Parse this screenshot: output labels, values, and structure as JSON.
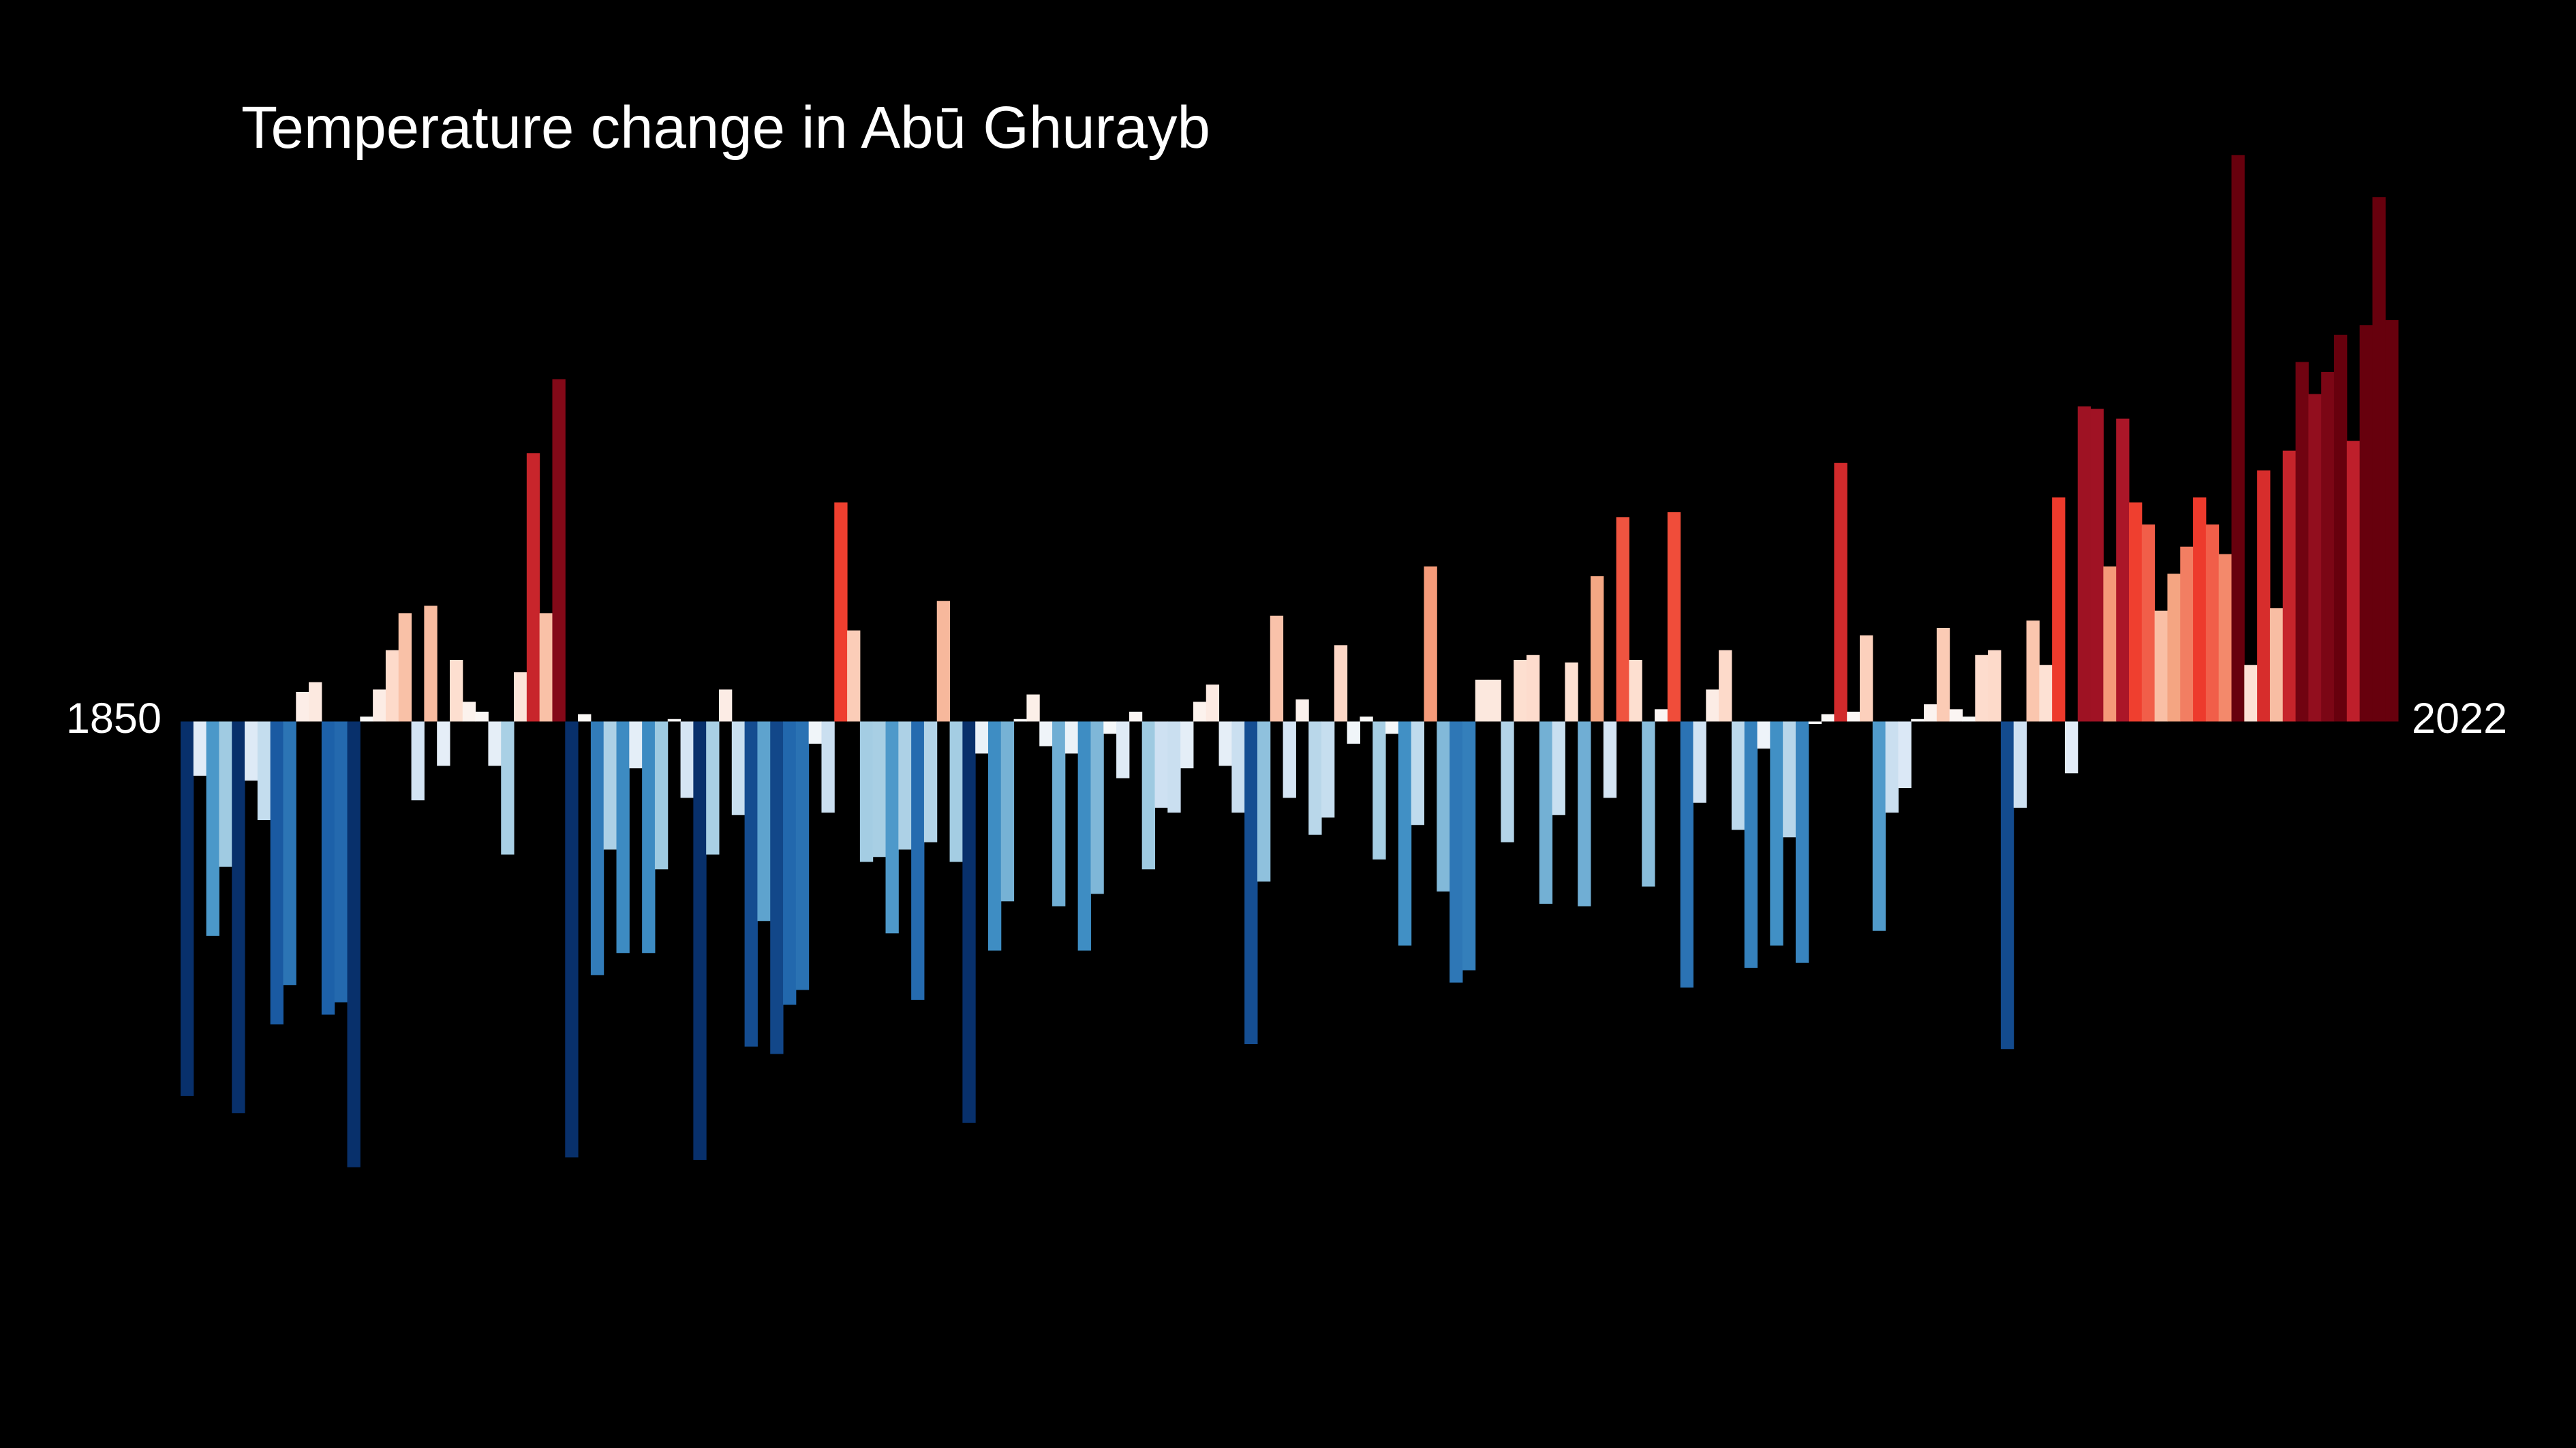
{
  "chart_data": {
    "type": "bar",
    "title": "Temperature change in Abū Ghurayb",
    "categories": [
      "1850",
      null,
      null,
      null,
      null,
      null,
      null,
      null,
      null,
      null,
      null,
      null,
      null,
      null,
      null,
      null,
      null,
      null,
      null,
      null,
      null,
      null,
      null,
      null,
      null,
      null,
      null,
      null,
      null,
      null,
      null,
      null,
      null,
      null,
      null,
      null,
      null,
      null,
      null,
      null,
      null,
      null,
      null,
      null,
      null,
      null,
      null,
      null,
      null,
      null,
      null,
      null,
      null,
      null,
      null,
      null,
      null,
      null,
      null,
      null,
      null,
      null,
      null,
      null,
      null,
      null,
      null,
      null,
      null,
      null,
      null,
      null,
      null,
      null,
      null,
      null,
      null,
      null,
      null,
      null,
      null,
      null,
      null,
      null,
      null,
      null,
      null,
      null,
      null,
      null,
      null,
      null,
      null,
      null,
      null,
      null,
      null,
      null,
      null,
      null,
      null,
      null,
      null,
      null,
      null,
      null,
      null,
      null,
      null,
      null,
      null,
      null,
      null,
      null,
      null,
      null,
      null,
      null,
      null,
      null,
      null,
      null,
      null,
      null,
      null,
      null,
      null,
      null,
      null,
      null,
      null,
      null,
      null,
      null,
      null,
      null,
      null,
      null,
      null,
      null,
      null,
      null,
      null,
      null,
      null,
      null,
      null,
      null,
      null,
      null,
      null,
      null,
      null,
      null,
      null,
      null,
      null,
      null,
      null,
      null,
      null,
      null,
      null,
      null,
      null,
      null,
      null,
      null,
      null,
      null,
      null,
      null,
      "2022"
    ],
    "values": [
      -1.52,
      -0.22,
      -0.87,
      -0.59,
      -1.59,
      -0.24,
      -0.4,
      -1.23,
      -1.07,
      0.12,
      0.16,
      -1.19,
      -1.14,
      -1.81,
      0.02,
      0.13,
      0.29,
      0.44,
      -0.32,
      0.47,
      -0.18,
      0.25,
      0.08,
      0.04,
      -0.18,
      -0.54,
      0.2,
      1.09,
      0.44,
      1.39,
      -1.77,
      0.03,
      -1.03,
      -0.52,
      -0.94,
      -0.19,
      -0.94,
      -0.6,
      0.01,
      -0.31,
      -1.78,
      -0.54,
      0.13,
      -0.38,
      -1.32,
      -0.81,
      -1.35,
      -1.15,
      -1.09,
      -0.09,
      -0.37,
      0.89,
      0.37,
      -0.57,
      -0.55,
      -0.86,
      -0.52,
      -1.13,
      -0.49,
      0.49,
      -0.57,
      -1.63,
      -0.13,
      -0.93,
      -0.73,
      0.01,
      0.11,
      -0.1,
      -0.75,
      -0.13,
      -0.93,
      -0.7,
      -0.05,
      -0.23,
      0.04,
      -0.6,
      -0.35,
      -0.37,
      -0.19,
      0.08,
      0.15,
      -0.18,
      -0.37,
      -1.31,
      -0.65,
      0.43,
      -0.31,
      0.09,
      -0.46,
      -0.39,
      0.31,
      -0.09,
      0.02,
      -0.56,
      -0.05,
      -0.91,
      -0.42,
      0.63,
      -0.69,
      -1.06,
      -1.01,
      0.17,
      0.17,
      -0.49,
      0.25,
      0.27,
      -0.74,
      -0.38,
      0.24,
      -0.75,
      0.59,
      -0.31,
      0.83,
      0.25,
      -0.67,
      0.05,
      0.85,
      -1.08,
      -0.33,
      0.13,
      0.29,
      -0.44,
      -1.0,
      -0.11,
      -0.91,
      -0.47,
      -0.98,
      -0.01,
      0.03,
      1.05,
      0.04,
      0.35,
      -0.85,
      -0.37,
      -0.27,
      0.01,
      0.07,
      0.38,
      0.05,
      0.02,
      0.27,
      0.29,
      -1.33,
      -0.35,
      0.41,
      0.23,
      0.91,
      -0.21,
      1.28,
      1.27,
      0.63,
      1.23,
      0.89,
      0.8,
      0.45,
      0.6,
      0.71,
      0.91,
      0.8,
      0.68,
      2.3,
      0.23,
      1.02,
      0.46,
      1.1,
      1.46,
      1.33,
      1.42,
      1.57,
      1.14,
      1.61,
      2.13,
      1.63
    ],
    "ylim": [
      -2.95,
      2.93
    ],
    "colormap": [
      "#08306b",
      "#1c5fa8",
      "#4292c6",
      "#9ecae1",
      "#d7e6f5",
      "#fbfbfb",
      "#fdd9c8",
      "#f4a582",
      "#ef3b2c",
      "#b2182b",
      "#67000d"
    ],
    "clim": [
      -1.5,
      1.5
    ]
  }
}
